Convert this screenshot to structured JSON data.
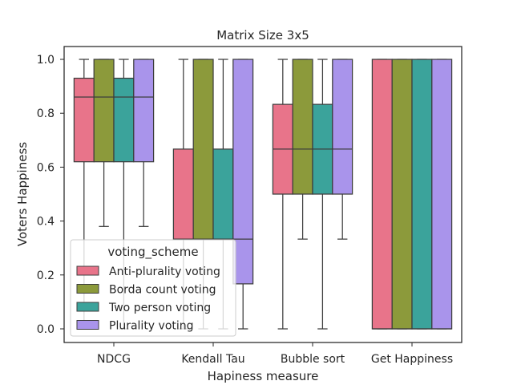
{
  "chart_data": {
    "type": "box",
    "title": "Matrix Size 3x5",
    "xlabel": "Hapiness measure",
    "ylabel": "Voters Happiness",
    "ylim": [
      -0.05,
      1.05
    ],
    "yticks": [
      0.0,
      0.2,
      0.4,
      0.6,
      0.8,
      1.0
    ],
    "ytick_labels": [
      "0.0",
      "0.2",
      "0.4",
      "0.6",
      "0.8",
      "1.0"
    ],
    "categories": [
      "NDCG",
      "Kendall Tau",
      "Bubble sort",
      "Get Happiness"
    ],
    "grid": false,
    "legend": {
      "title": "voting_scheme",
      "position": "lower-left"
    },
    "series": [
      {
        "name": "Anti-plurality voting",
        "color": "#e8748a",
        "boxes": [
          {
            "whislo": 0.0,
            "q1": 0.62,
            "med": 0.86,
            "q3": 0.93,
            "whishi": 1.0
          },
          {
            "whislo": 0.0,
            "q1": 0.333,
            "med": 0.333,
            "q3": 0.667,
            "whishi": 1.0
          },
          {
            "whislo": 0.0,
            "q1": 0.5,
            "med": 0.667,
            "q3": 0.833,
            "whishi": 1.0
          },
          {
            "whislo": 0.0,
            "q1": 0.0,
            "med": 0.0,
            "q3": 1.0,
            "whishi": 1.0
          }
        ]
      },
      {
        "name": "Borda count voting",
        "color": "#8c9a3b",
        "boxes": [
          {
            "whislo": 0.38,
            "q1": 0.62,
            "med": 0.86,
            "q3": 1.0,
            "whishi": 1.0
          },
          {
            "whislo": 0.0,
            "q1": 0.333,
            "med": 0.333,
            "q3": 1.0,
            "whishi": 1.0
          },
          {
            "whislo": 0.333,
            "q1": 0.5,
            "med": 0.667,
            "q3": 1.0,
            "whishi": 1.0
          },
          {
            "whislo": 0.0,
            "q1": 0.0,
            "med": 0.0,
            "q3": 1.0,
            "whishi": 1.0
          }
        ]
      },
      {
        "name": "Two person voting",
        "color": "#3ba39b",
        "boxes": [
          {
            "whislo": 0.0,
            "q1": 0.62,
            "med": 0.86,
            "q3": 0.93,
            "whishi": 1.0
          },
          {
            "whislo": 0.0,
            "q1": 0.333,
            "med": 0.333,
            "q3": 0.667,
            "whishi": 1.0
          },
          {
            "whislo": 0.0,
            "q1": 0.5,
            "med": 0.667,
            "q3": 0.833,
            "whishi": 1.0
          },
          {
            "whislo": 0.0,
            "q1": 0.0,
            "med": 0.0,
            "q3": 1.0,
            "whishi": 1.0
          }
        ]
      },
      {
        "name": "Plurality voting",
        "color": "#a994eb",
        "boxes": [
          {
            "whislo": 0.38,
            "q1": 0.62,
            "med": 0.86,
            "q3": 1.0,
            "whishi": 1.0
          },
          {
            "whislo": 0.0,
            "q1": 0.167,
            "med": 0.333,
            "q3": 1.0,
            "whishi": 1.0
          },
          {
            "whislo": 0.333,
            "q1": 0.5,
            "med": 0.667,
            "q3": 1.0,
            "whishi": 1.0
          },
          {
            "whislo": 0.0,
            "q1": 0.0,
            "med": 0.0,
            "q3": 1.0,
            "whishi": 1.0
          }
        ]
      }
    ]
  }
}
